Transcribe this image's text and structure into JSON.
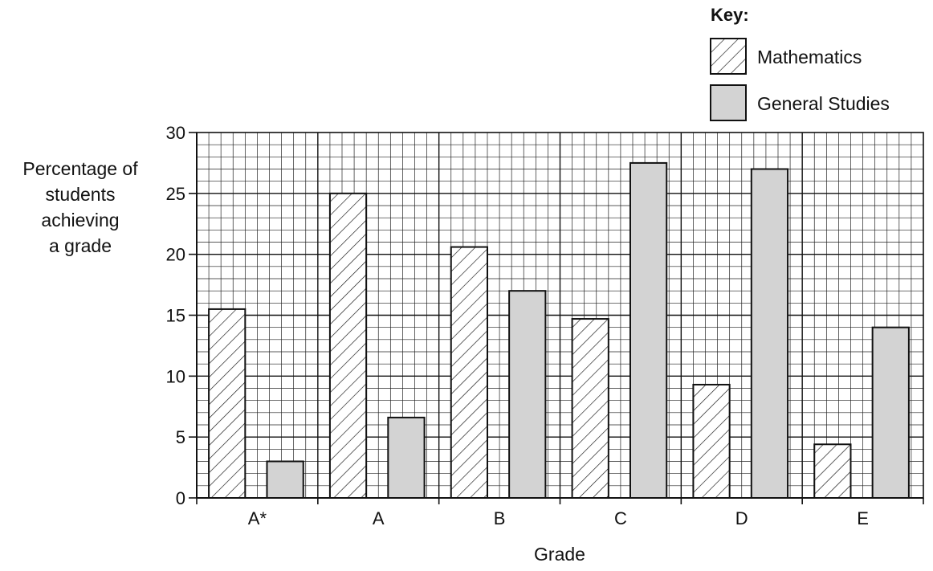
{
  "chart_data": {
    "type": "bar",
    "categories": [
      "A*",
      "A",
      "B",
      "C",
      "D",
      "E"
    ],
    "series": [
      {
        "name": "Mathematics",
        "values": [
          15.5,
          25.0,
          20.6,
          14.7,
          9.3,
          4.4
        ],
        "pattern": "hatched"
      },
      {
        "name": "General Studies",
        "values": [
          3.0,
          6.6,
          17.0,
          27.5,
          27.0,
          14.0
        ],
        "color": "#d3d3d3"
      }
    ],
    "title": "",
    "xlabel": "Grade",
    "ylabel_lines": [
      "Percentage of",
      "students",
      "achieving",
      "a grade"
    ],
    "ylim": [
      0,
      30
    ],
    "yticks": [
      0,
      5,
      10,
      15,
      20,
      25,
      30
    ],
    "grid": "on",
    "legend": {
      "title": "Key:",
      "placement": "top-right"
    }
  }
}
